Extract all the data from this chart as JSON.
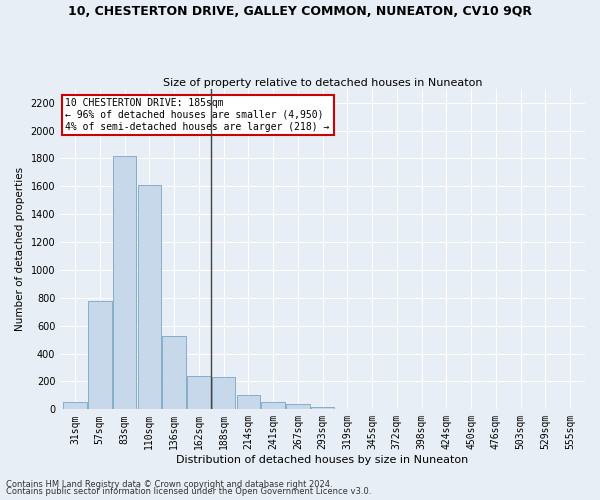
{
  "title": "10, CHESTERTON DRIVE, GALLEY COMMON, NUNEATON, CV10 9QR",
  "subtitle": "Size of property relative to detached houses in Nuneaton",
  "xlabel": "Distribution of detached houses by size in Nuneaton",
  "ylabel": "Number of detached properties",
  "categories": [
    "31sqm",
    "57sqm",
    "83sqm",
    "110sqm",
    "136sqm",
    "162sqm",
    "188sqm",
    "214sqm",
    "241sqm",
    "267sqm",
    "293sqm",
    "319sqm",
    "345sqm",
    "372sqm",
    "398sqm",
    "424sqm",
    "450sqm",
    "476sqm",
    "503sqm",
    "529sqm",
    "555sqm"
  ],
  "values": [
    55,
    780,
    1820,
    1610,
    525,
    240,
    235,
    105,
    55,
    40,
    20,
    0,
    0,
    0,
    0,
    0,
    0,
    0,
    0,
    0,
    0
  ],
  "bar_color": "#c8d8eb",
  "bar_edge_color": "#6699bb",
  "highlight_index": 6,
  "highlight_line_color": "#444444",
  "annotation_line1": "10 CHESTERTON DRIVE: 185sqm",
  "annotation_line2": "← 96% of detached houses are smaller (4,950)",
  "annotation_line3": "4% of semi-detached houses are larger (218) →",
  "annotation_box_color": "#ffffff",
  "annotation_box_edge": "#cc0000",
  "ylim": [
    0,
    2300
  ],
  "yticks": [
    0,
    200,
    400,
    600,
    800,
    1000,
    1200,
    1400,
    1600,
    1800,
    2000,
    2200
  ],
  "bg_color": "#e8eef5",
  "plot_bg_color": "#e8eef5",
  "grid_color": "#ffffff",
  "footer1": "Contains HM Land Registry data © Crown copyright and database right 2024.",
  "footer2": "Contains public sector information licensed under the Open Government Licence v3.0.",
  "title_fontsize": 9,
  "subtitle_fontsize": 8,
  "xlabel_fontsize": 8,
  "ylabel_fontsize": 7.5,
  "tick_fontsize": 7,
  "annot_fontsize": 7,
  "footer_fontsize": 6
}
